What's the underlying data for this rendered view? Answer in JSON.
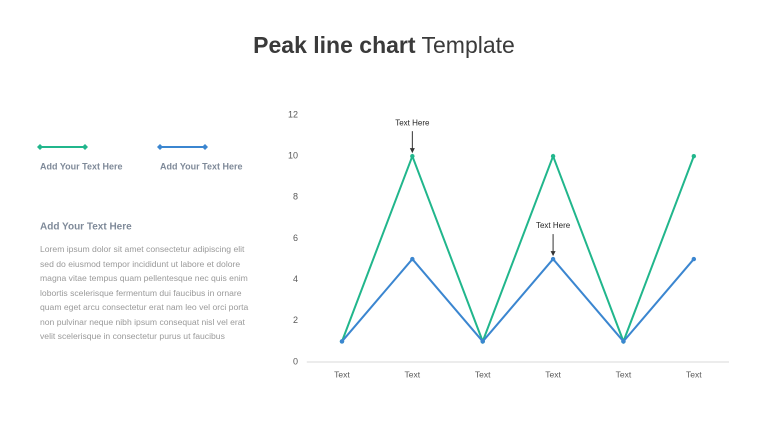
{
  "title_bold": "Peak line chart",
  "title_regular": "Template",
  "left": {
    "heading": "Add Your Text  Here",
    "paragraph_lines": [
      "Lorem ipsum dolor sit amet consectetur adipiscing elit",
      "sed do eiusmod tempor incididunt ut labore et dolore",
      "magna vitae tempus quam pellentesque nec quis enim",
      "lobortis scelerisque fermentum dui faucibus in ornare",
      "quam eget arcu consectetur erat nam leo vel orci porta",
      "non pulvinar neque nibh ipsum consequat nisl vel erat",
      "velit scelerisque in consectetur purus ut faucibus"
    ]
  },
  "chart_data": {
    "type": "line",
    "categories": [
      "Text",
      "Text",
      "Text",
      "Text",
      "Text",
      "Text"
    ],
    "series": [
      {
        "name": "Add Your  Text  Here",
        "color": "#21b68c",
        "values": [
          1,
          10,
          1,
          10,
          1,
          10
        ]
      },
      {
        "name": "Add Your Text  Here",
        "color": "#3b86d0",
        "values": [
          1,
          5,
          1,
          5,
          1,
          5
        ]
      }
    ],
    "annotations": [
      "Text Here",
      "Text Here"
    ],
    "ylim": [
      0,
      12
    ],
    "yticks": [
      0,
      2,
      4,
      6,
      8,
      10,
      12
    ],
    "grid": false
  }
}
